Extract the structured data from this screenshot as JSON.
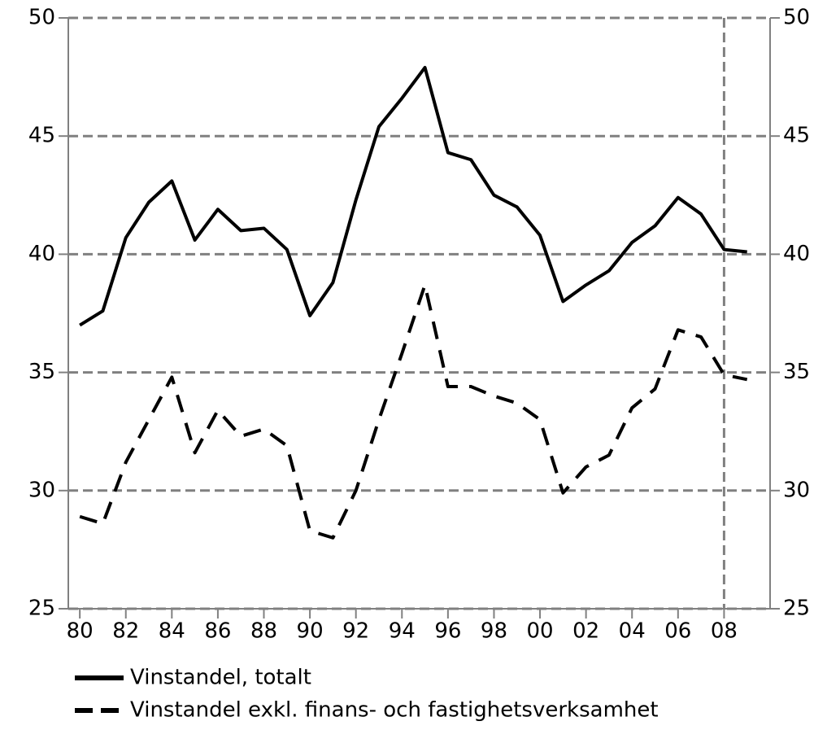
{
  "chart_data": {
    "type": "line",
    "x": [
      1980,
      1981,
      1982,
      1983,
      1984,
      1985,
      1986,
      1987,
      1988,
      1989,
      1990,
      1991,
      1992,
      1993,
      1994,
      1995,
      1996,
      1997,
      1998,
      1999,
      2000,
      2001,
      2002,
      2003,
      2004,
      2005,
      2006,
      2007,
      2008,
      2009
    ],
    "series": [
      {
        "name": "Vinstandel, totalt",
        "color": "#000000",
        "dashed": false,
        "values": [
          37.0,
          37.6,
          40.7,
          42.2,
          43.1,
          40.6,
          41.9,
          41.0,
          41.1,
          40.2,
          37.4,
          38.8,
          42.3,
          45.4,
          46.6,
          47.9,
          44.3,
          44.0,
          42.5,
          42.0,
          40.8,
          38.0,
          38.7,
          39.3,
          40.5,
          41.2,
          42.4,
          41.7,
          40.2,
          40.1
        ]
      },
      {
        "name": "Vinstandel exkl. finans- och fastighetsverksamhet",
        "color": "#000000",
        "dashed": true,
        "values": [
          28.9,
          28.6,
          31.2,
          33.0,
          34.8,
          31.6,
          33.4,
          32.3,
          32.6,
          31.9,
          28.3,
          28.0,
          30.0,
          33.0,
          35.8,
          38.7,
          34.4,
          34.4,
          34.0,
          33.7,
          33.0,
          29.9,
          31.0,
          31.5,
          33.5,
          34.3,
          36.8,
          36.5,
          34.9,
          34.7
        ]
      }
    ],
    "xlim": [
      1979.5,
      2010
    ],
    "xticks": [
      {
        "value": 1980,
        "label": "80"
      },
      {
        "value": 1982,
        "label": "82"
      },
      {
        "value": 1984,
        "label": "84"
      },
      {
        "value": 1986,
        "label": "86"
      },
      {
        "value": 1988,
        "label": "88"
      },
      {
        "value": 1990,
        "label": "90"
      },
      {
        "value": 1992,
        "label": "92"
      },
      {
        "value": 1994,
        "label": "94"
      },
      {
        "value": 1996,
        "label": "96"
      },
      {
        "value": 1998,
        "label": "98"
      },
      {
        "value": 2000,
        "label": "00"
      },
      {
        "value": 2002,
        "label": "02"
      },
      {
        "value": 2004,
        "label": "04"
      },
      {
        "value": 2006,
        "label": "06"
      },
      {
        "value": 2008,
        "label": "08"
      }
    ],
    "ylim": [
      25,
      50
    ],
    "yticks": [
      25,
      30,
      35,
      40,
      45,
      50
    ],
    "y2lim": [
      25,
      50
    ],
    "y2ticks": [
      25,
      30,
      35,
      40,
      45,
      50
    ],
    "grid": true,
    "vline_x": 2008,
    "legend": "bottom"
  }
}
